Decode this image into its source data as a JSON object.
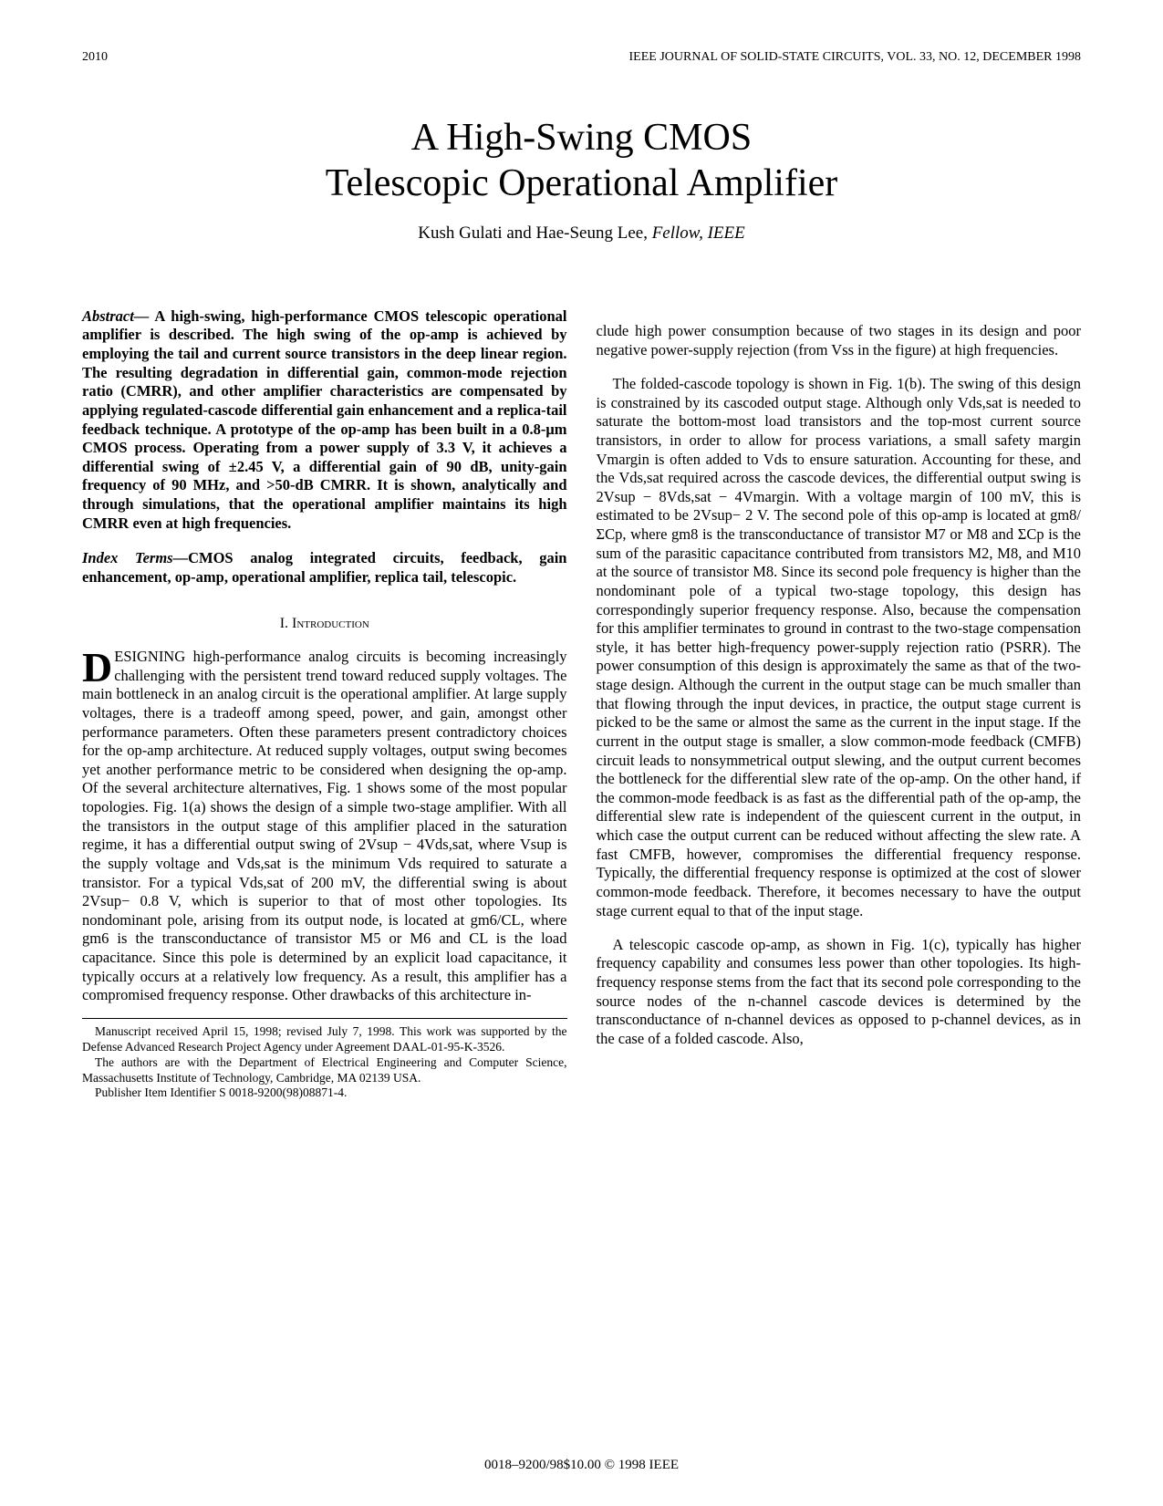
{
  "header": {
    "page_number": "2010",
    "journal_line": "IEEE JOURNAL OF SOLID-STATE CIRCUITS, VOL. 33, NO. 12, DECEMBER 1998"
  },
  "title_line1": "A High-Swing CMOS",
  "title_line2": "Telescopic Operational Amplifier",
  "authors_plain": "Kush Gulati and Hae-Seung Lee, ",
  "authors_fellow": "Fellow, IEEE",
  "abstract_label": "Abstract—",
  "abstract_text": " A high-swing, high-performance CMOS telescopic operational amplifier is described. The high swing of the op-amp is achieved by employing the tail and current source transistors in the deep linear region. The resulting degradation in differential gain, common-mode rejection ratio (CMRR), and other amplifier characteristics are compensated by applying regulated-cascode differential gain enhancement and a replica-tail feedback technique. A prototype of the op-amp has been built in a 0.8-μm CMOS process. Operating from a power supply of 3.3 V, it achieves a differential swing of ±2.45 V, a differential gain of 90 dB, unity-gain frequency of 90 MHz, and >50-dB CMRR. It is shown, analytically and through simulations, that the operational amplifier maintains its high CMRR even at high frequencies.",
  "index_label": "Index Terms—",
  "index_text": "CMOS analog integrated circuits, feedback, gain enhancement, op-amp, operational amplifier, replica tail, telescopic.",
  "section1_heading": "I.  Introduction",
  "col1_para1": "ESIGNING high-performance analog circuits is becoming increasingly challenging with the persistent trend toward reduced supply voltages. The main bottleneck in an analog circuit is the operational amplifier. At large supply voltages, there is a tradeoff among speed, power, and gain, amongst other performance parameters. Often these parameters present contradictory choices for the op-amp architecture. At reduced supply voltages, output swing becomes yet another performance metric to be considered when designing the op-amp. Of the several architecture alternatives, Fig. 1 shows some of the most popular topologies. Fig. 1(a) shows the design of a simple two-stage amplifier. With all the transistors in the output stage of this amplifier placed in the saturation regime, it has a differential output swing of 2Vsup − 4Vds,sat, where Vsup is the supply voltage and Vds,sat is the minimum Vds required to saturate a transistor. For a typical Vds,sat of 200 mV, the differential swing is about 2Vsup− 0.8 V, which is superior to that of most other topologies. Its nondominant pole, arising from its output node, is located at gm6/CL, where gm6 is the transconductance of transistor M5 or M6 and CL is the load capacitance. Since this pole is determined by an explicit load capacitance, it typically occurs at a relatively low frequency. As a result, this amplifier has a compromised frequency response. Other drawbacks of this architecture in-",
  "footnote1": "Manuscript received April 15, 1998; revised July 7, 1998. This work was supported by the Defense Advanced Research Project Agency under Agreement DAAL-01-95-K-3526.",
  "footnote2": "The authors are with the Department of Electrical Engineering and Computer Science, Massachusetts Institute of Technology, Cambridge, MA 02139 USA.",
  "footnote3": "Publisher Item Identifier S 0018-9200(98)08871-4.",
  "col2_para1": "clude high power consumption because of two stages in its design and poor negative power-supply rejection (from Vss in the figure) at high frequencies.",
  "col2_para2": "The folded-cascode topology is shown in Fig. 1(b). The swing of this design is constrained by its cascoded output stage. Although only Vds,sat is needed to saturate the bottom-most load transistors and the top-most current source transistors, in order to allow for process variations, a small safety margin Vmargin is often added to Vds to ensure saturation. Accounting for these, and the Vds,sat required across the cascode devices, the differential output swing is 2Vsup − 8Vds,sat − 4Vmargin. With a voltage margin of 100 mV, this is estimated to be 2Vsup− 2 V. The second pole of this op-amp is located at gm8/ΣCp, where gm8 is the transconductance of transistor M7 or M8 and ΣCp is the sum of the parasitic capacitance contributed from transistors M2, M8, and M10 at the source of transistor M8. Since its second pole frequency is higher than the nondominant pole of a typical two-stage topology, this design has correspondingly superior frequency response. Also, because the compensation for this amplifier terminates to ground in contrast to the two-stage compensation style, it has better high-frequency power-supply rejection ratio (PSRR). The power consumption of this design is approximately the same as that of the two-stage design. Although the current in the output stage can be much smaller than that flowing through the input devices, in practice, the output stage current is picked to be the same or almost the same as the current in the input stage. If the current in the output stage is smaller, a slow common-mode feedback (CMFB) circuit leads to nonsymmetrical output slewing, and the output current becomes the bottleneck for the differential slew rate of the op-amp. On the other hand, if the common-mode feedback is as fast as the differential path of the op-amp, the differential slew rate is independent of the quiescent current in the output, in which case the output current can be reduced without affecting the slew rate. A fast CMFB, however, compromises the differential frequency response. Typically, the differential frequency response is optimized at the cost of slower common-mode feedback. Therefore, it becomes necessary to have the output stage current equal to that of the input stage.",
  "col2_para3": "A telescopic cascode op-amp, as shown in Fig. 1(c), typically has higher frequency capability and consumes less power than other topologies. Its high-frequency response stems from the fact that its second pole corresponding to the source nodes of the n-channel cascode devices is determined by the transconductance of n-channel devices as opposed to p-channel devices, as in the case of a folded cascode. Also,",
  "footer_text": "0018–9200/98$10.00 © 1998 IEEE"
}
